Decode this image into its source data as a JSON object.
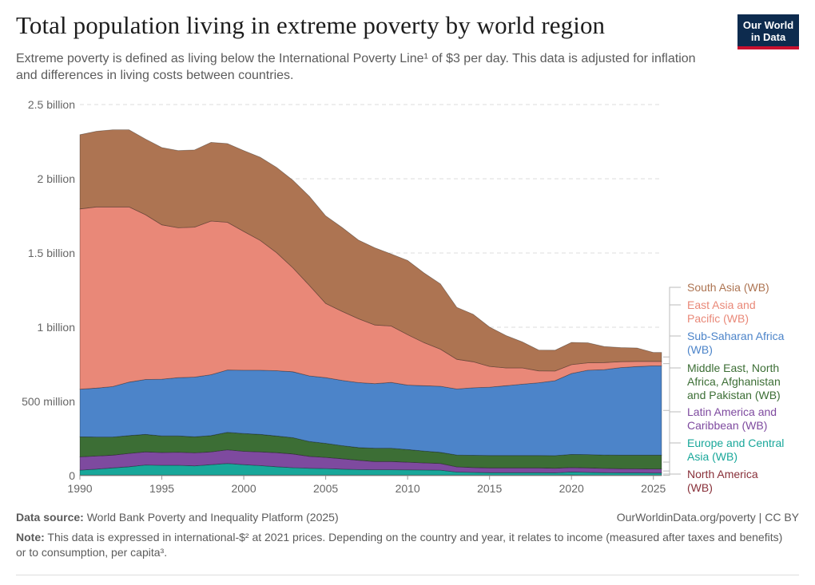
{
  "title": "Total population living in extreme poverty by world region",
  "subtitle_html": "Extreme poverty is defined as living below the International Poverty Line¹ of $3 per day. This data is adjusted for inflation and differences in living costs between countries.",
  "logo": {
    "line1": "Our World",
    "line2": "in Data"
  },
  "footer": {
    "source_label": "Data source:",
    "source_text": "World Bank Poverty and Inequality Platform (2025)",
    "url": "OurWorldinData.org/poverty | CC BY",
    "note_label": "Note:",
    "note_text": "This data is expressed in international-$² at 2021 prices. Depending on the country and year, it relates to income (measured after taxes and benefits) or to consumption, per capita³."
  },
  "chart_data": {
    "type": "area",
    "stacked": true,
    "x": [
      1990,
      1991,
      1992,
      1993,
      1994,
      1995,
      1996,
      1997,
      1998,
      1999,
      2000,
      2001,
      2002,
      2003,
      2004,
      2005,
      2006,
      2007,
      2008,
      2009,
      2010,
      2011,
      2012,
      2013,
      2014,
      2015,
      2016,
      2017,
      2018,
      2019,
      2020,
      2021,
      2022,
      2023,
      2024,
      2025
    ],
    "ylim": [
      0,
      2500000000
    ],
    "yticks": [
      0,
      500000000,
      1000000000,
      1500000000,
      2000000000,
      2500000000
    ],
    "ytick_labels": [
      "0",
      "500 million",
      "1 billion",
      "1.5 billion",
      "2 billion",
      "2.5 billion"
    ],
    "xticks": [
      1990,
      1995,
      2000,
      2005,
      2010,
      2015,
      2020,
      2025
    ],
    "grid": true,
    "series": [
      {
        "name": "North America",
        "color": "#883039",
        "values": [
          4000000,
          4000000,
          4000000,
          4000000,
          4000000,
          4000000,
          4000000,
          4000000,
          4000000,
          4000000,
          4000000,
          4000000,
          4000000,
          4000000,
          4000000,
          4000000,
          4000000,
          4000000,
          4000000,
          4000000,
          4000000,
          4000000,
          4000000,
          4000000,
          4000000,
          4000000,
          4000000,
          4000000,
          4000000,
          4000000,
          5000000,
          4000000,
          4000000,
          4000000,
          4000000,
          4000000
        ]
      },
      {
        "name": "Europe and Central Asia (WB)",
        "color": "#18a79a",
        "values": [
          33000000,
          40000000,
          48000000,
          56000000,
          68000000,
          66000000,
          66000000,
          62000000,
          70000000,
          78000000,
          70000000,
          64000000,
          56000000,
          50000000,
          46000000,
          44000000,
          40000000,
          37000000,
          36000000,
          36000000,
          35000000,
          34000000,
          33000000,
          20000000,
          18000000,
          16000000,
          16000000,
          16000000,
          16000000,
          15000000,
          20000000,
          18000000,
          16000000,
          15000000,
          15000000,
          14000000
        ]
      },
      {
        "name": "Latin America and Caribbean (WB)",
        "color": "#7e4a9f",
        "values": [
          90000000,
          88000000,
          86000000,
          90000000,
          88000000,
          86000000,
          88000000,
          88000000,
          86000000,
          92000000,
          90000000,
          92000000,
          95000000,
          92000000,
          80000000,
          75000000,
          70000000,
          63000000,
          55000000,
          55000000,
          52000000,
          48000000,
          45000000,
          35000000,
          33000000,
          32000000,
          32000000,
          32000000,
          32000000,
          31000000,
          30000000,
          30000000,
          29000000,
          28000000,
          27000000,
          27000000
        ]
      },
      {
        "name": "Middle East, North Africa, Afghanistan and Pakistan (WB)",
        "color": "#3c6e35",
        "values": [
          135000000,
          128000000,
          122000000,
          120000000,
          118000000,
          112000000,
          110000000,
          108000000,
          110000000,
          118000000,
          120000000,
          118000000,
          112000000,
          110000000,
          100000000,
          95000000,
          88000000,
          85000000,
          90000000,
          90000000,
          85000000,
          80000000,
          75000000,
          80000000,
          82000000,
          84000000,
          84000000,
          84000000,
          84000000,
          85000000,
          88000000,
          90000000,
          90000000,
          91000000,
          92000000,
          93000000
        ]
      },
      {
        "name": "Sub-Saharan Africa (WB)",
        "color": "#4c84c9",
        "values": [
          320000000,
          330000000,
          340000000,
          360000000,
          370000000,
          382000000,
          392000000,
          402000000,
          410000000,
          420000000,
          426000000,
          432000000,
          440000000,
          444000000,
          442000000,
          442000000,
          440000000,
          438000000,
          435000000,
          443000000,
          434000000,
          440000000,
          445000000,
          445000000,
          455000000,
          460000000,
          470000000,
          480000000,
          490000000,
          505000000,
          545000000,
          568000000,
          575000000,
          590000000,
          597000000,
          602000000
        ]
      },
      {
        "name": "East Asia and Pacific (WB)",
        "color": "#e98878",
        "values": [
          1215000000,
          1220000000,
          1210000000,
          1180000000,
          1110000000,
          1040000000,
          1010000000,
          1010000000,
          1035000000,
          995000000,
          935000000,
          875000000,
          795000000,
          700000000,
          610000000,
          500000000,
          465000000,
          430000000,
          395000000,
          380000000,
          340000000,
          290000000,
          250000000,
          200000000,
          175000000,
          140000000,
          120000000,
          110000000,
          80000000,
          65000000,
          60000000,
          50000000,
          48000000,
          40000000,
          35000000,
          30000000
        ]
      },
      {
        "name": "South Asia (WB)",
        "color": "#ad7452",
        "values": [
          500000000,
          510000000,
          520000000,
          520000000,
          510000000,
          520000000,
          520000000,
          520000000,
          530000000,
          530000000,
          545000000,
          560000000,
          575000000,
          590000000,
          600000000,
          590000000,
          565000000,
          530000000,
          520000000,
          485000000,
          500000000,
          470000000,
          440000000,
          350000000,
          320000000,
          265000000,
          218000000,
          175000000,
          140000000,
          140000000,
          150000000,
          135000000,
          108000000,
          95000000,
          90000000,
          60000000
        ]
      }
    ],
    "legend_placement": "right"
  }
}
